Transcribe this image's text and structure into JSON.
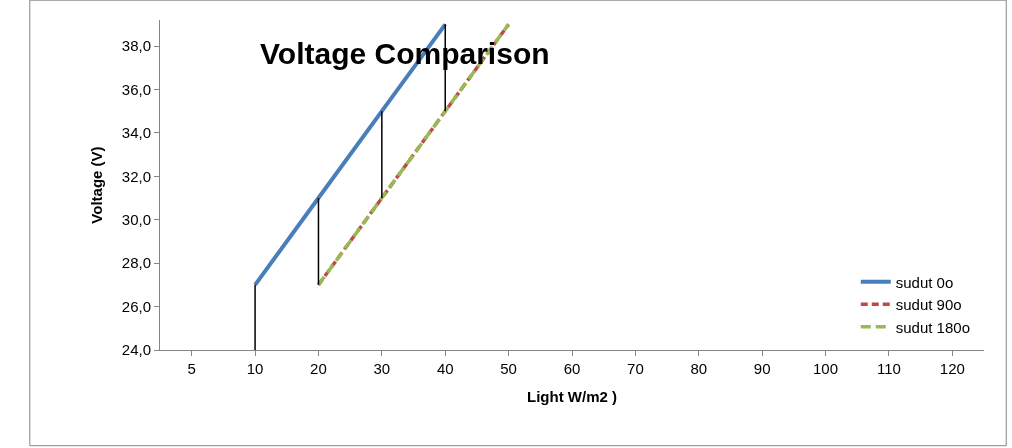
{
  "chart_data": {
    "type": "line",
    "title": "Voltage Comparison",
    "xlabel": "Light W/m2 )",
    "ylabel": "Voltage (V)",
    "categories": [
      "5",
      "10",
      "20",
      "30",
      "40",
      "50",
      "60",
      "70",
      "80",
      "90",
      "100",
      "110",
      "120"
    ],
    "series": [
      {
        "name": "sudut 0o",
        "color": "#4a7ebb",
        "line_style": "solid",
        "values": [
          null,
          27,
          31,
          35,
          39,
          null,
          null,
          null,
          null,
          null,
          null,
          null,
          null
        ],
        "errors": [
          null,
          [
            24,
            27
          ],
          [
            27,
            31
          ],
          [
            31,
            35
          ],
          [
            35,
            39
          ],
          null,
          null,
          null,
          null,
          null,
          null,
          null,
          null
        ]
      },
      {
        "name": "sudut 90o",
        "color": "#be4b48",
        "line_style": "dashed",
        "values": [
          null,
          null,
          27,
          31,
          35,
          39,
          null,
          null,
          null,
          null,
          null,
          null,
          null
        ]
      },
      {
        "name": "sudut 180o",
        "color": "#98b954",
        "line_style": "dashed",
        "values": [
          null,
          null,
          27,
          31,
          35,
          39,
          null,
          null,
          null,
          null,
          null,
          null,
          null
        ]
      }
    ],
    "ylim": [
      24,
      39.2
    ],
    "yticks": [
      {
        "value": 24,
        "label": "24,0"
      },
      {
        "value": 26,
        "label": "26,0"
      },
      {
        "value": 28,
        "label": "28,0"
      },
      {
        "value": 30,
        "label": "30,0"
      },
      {
        "value": 32,
        "label": "32,0"
      },
      {
        "value": 34,
        "label": "34,0"
      },
      {
        "value": 36,
        "label": "36,0"
      },
      {
        "value": 38,
        "label": "38,0"
      }
    ],
    "legend": "bottom right",
    "marker": "none"
  }
}
